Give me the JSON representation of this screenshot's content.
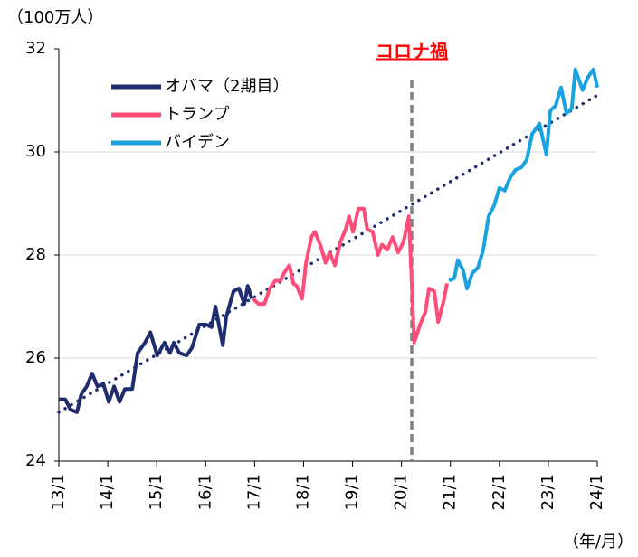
{
  "chart_data": {
    "type": "line",
    "y_unit": "（100万人）",
    "x_unit": "（年/月）",
    "annotation": "コロナ禍",
    "event_x": 2020.21,
    "xlim": [
      2013,
      2024
    ],
    "xticks": [
      {
        "value": 2013,
        "label": "13/1"
      },
      {
        "value": 2014,
        "label": "14/1"
      },
      {
        "value": 2015,
        "label": "15/1"
      },
      {
        "value": 2016,
        "label": "16/1"
      },
      {
        "value": 2017,
        "label": "17/1"
      },
      {
        "value": 2018,
        "label": "18/1"
      },
      {
        "value": 2019,
        "label": "19/1"
      },
      {
        "value": 2020,
        "label": "20/1"
      },
      {
        "value": 2021,
        "label": "21/1"
      },
      {
        "value": 2022,
        "label": "22/1"
      },
      {
        "value": 2023,
        "label": "23/1"
      },
      {
        "value": 2024,
        "label": "24/1"
      }
    ],
    "ylim": [
      24,
      32
    ],
    "yticks": [
      24,
      26,
      28,
      30,
      32
    ],
    "grid": true,
    "series": [
      {
        "name": "オバマ（2期目）",
        "color": "#1f2d6e",
        "x": [
          2013,
          2013.13,
          2013.24,
          2013.37,
          2013.46,
          2013.57,
          2013.68,
          2013.79,
          2013.91,
          2014.02,
          2014.13,
          2014.24,
          2014.35,
          2014.5,
          2014.61,
          2014.76,
          2014.87,
          2015.01,
          2015.16,
          2015.27,
          2015.35,
          2015.46,
          2015.61,
          2015.72,
          2015.87,
          2016.01,
          2016.12,
          2016.2,
          2016.35,
          2016.42,
          2016.57,
          2016.68,
          2016.79,
          2016.86,
          2016.94
        ],
        "values": [
          25.2,
          25.2,
          25.0,
          24.95,
          25.3,
          25.45,
          25.7,
          25.45,
          25.5,
          25.15,
          25.45,
          25.15,
          25.4,
          25.4,
          26.1,
          26.3,
          26.5,
          26.05,
          26.3,
          26.1,
          26.3,
          26.1,
          26.05,
          26.2,
          26.65,
          26.65,
          26.6,
          27.0,
          26.25,
          26.8,
          27.3,
          27.35,
          27.05,
          27.4,
          27.15
        ]
      },
      {
        "name": "トランプ",
        "color": "#ff4d79",
        "x": [
          2016.97,
          2017.08,
          2017.2,
          2017.31,
          2017.42,
          2017.53,
          2017.6,
          2017.71,
          2017.79,
          2017.86,
          2017.97,
          2018.05,
          2018.16,
          2018.23,
          2018.34,
          2018.45,
          2018.53,
          2018.64,
          2018.75,
          2018.86,
          2018.93,
          2019.01,
          2019.12,
          2019.23,
          2019.3,
          2019.41,
          2019.52,
          2019.6,
          2019.71,
          2019.82,
          2019.93,
          2020.04,
          2020.15,
          2020.19,
          2020.26,
          2020.38,
          2020.49,
          2020.56,
          2020.67,
          2020.75,
          2020.86,
          2020.93
        ],
        "values": [
          27.15,
          27.05,
          27.05,
          27.35,
          27.5,
          27.5,
          27.65,
          27.8,
          27.45,
          27.4,
          27.15,
          27.85,
          28.35,
          28.45,
          28.2,
          27.85,
          28.05,
          27.8,
          28.25,
          28.5,
          28.75,
          28.45,
          28.9,
          28.9,
          28.5,
          28.45,
          28.0,
          28.2,
          28.1,
          28.35,
          28.05,
          28.25,
          28.75,
          27.9,
          26.3,
          26.65,
          26.9,
          27.35,
          27.3,
          26.7,
          27.1,
          27.45
        ]
      },
      {
        "name": "バイデン",
        "color": "#1aa3e0",
        "x": [
          2020.97,
          2021.08,
          2021.15,
          2021.26,
          2021.34,
          2021.45,
          2021.56,
          2021.67,
          2021.78,
          2021.89,
          2022.0,
          2022.11,
          2022.22,
          2022.33,
          2022.45,
          2022.56,
          2022.67,
          2022.82,
          2022.96,
          2023.04,
          2023.15,
          2023.26,
          2023.37,
          2023.48,
          2023.55,
          2023.7,
          2023.81,
          2023.92,
          2024.0
        ],
        "values": [
          27.5,
          27.55,
          27.9,
          27.7,
          27.35,
          27.65,
          27.75,
          28.1,
          28.75,
          28.95,
          29.3,
          29.25,
          29.5,
          29.65,
          29.7,
          29.85,
          30.35,
          30.55,
          29.95,
          30.8,
          30.9,
          31.25,
          30.75,
          30.85,
          31.6,
          31.2,
          31.45,
          31.6,
          31.25
        ]
      }
    ],
    "trendline": {
      "color": "#1f2d6e",
      "x": [
        2013,
        2024
      ],
      "values": [
        24.95,
        31.1
      ]
    }
  }
}
